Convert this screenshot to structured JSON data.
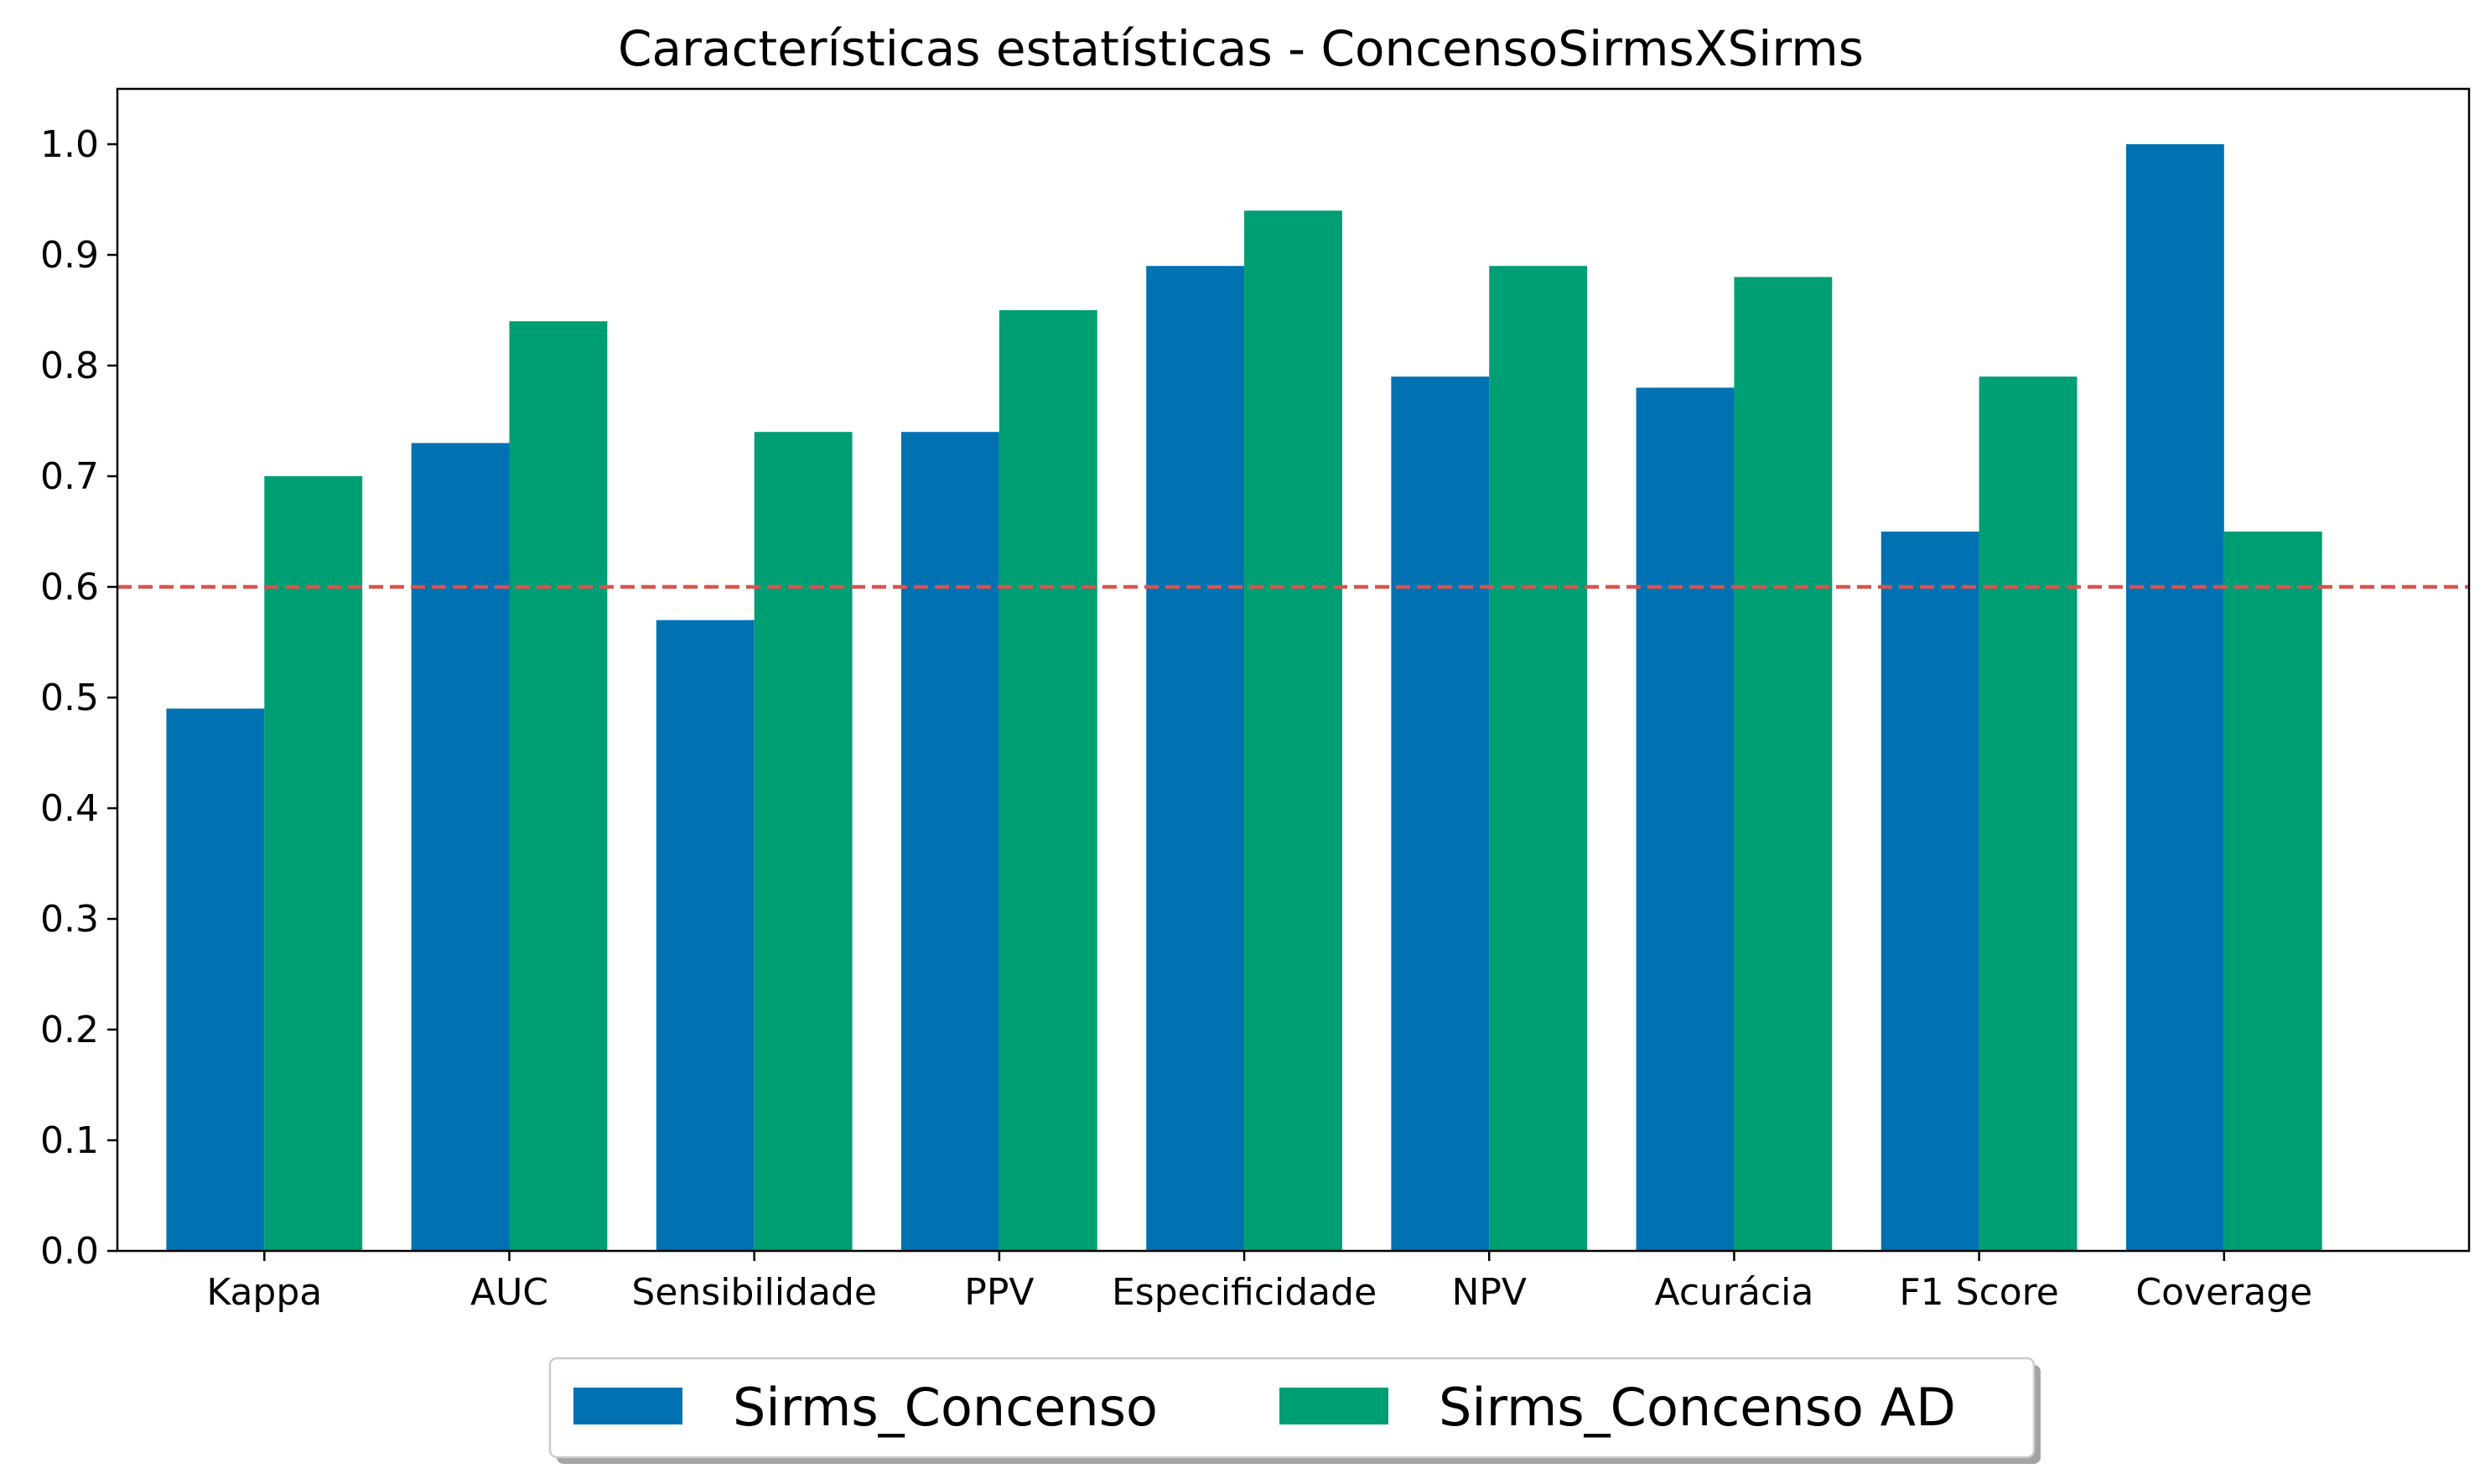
{
  "chart_data": {
    "type": "bar",
    "title": "Características estatísticas - ConcensoSirmsXSirms",
    "xlabel": "",
    "ylabel": "",
    "categories": [
      "Kappa",
      "AUC",
      "Sensibilidade",
      "PPV",
      "Especificidade",
      "NPV",
      "Acurácia",
      "F1 Score",
      "Coverage"
    ],
    "series": [
      {
        "name": "Sirms_Concenso",
        "color": "#0072B2",
        "values": [
          0.49,
          0.73,
          0.57,
          0.74,
          0.89,
          0.79,
          0.78,
          0.65,
          1.0
        ]
      },
      {
        "name": "Sirms_Concenso AD",
        "color": "#009E73",
        "values": [
          0.7,
          0.84,
          0.74,
          0.85,
          0.94,
          0.89,
          0.88,
          0.79,
          0.65
        ]
      }
    ],
    "ylim": [
      0,
      1.05
    ],
    "yticks": [
      "0.0",
      "0.1",
      "0.2",
      "0.3",
      "0.4",
      "0.5",
      "0.6",
      "0.7",
      "0.8",
      "0.9",
      "1.0"
    ],
    "reference_line": {
      "value": 0.6,
      "color": "#d9534f",
      "style": "dashed"
    },
    "grid": false,
    "legend_position": "bottom-center"
  }
}
